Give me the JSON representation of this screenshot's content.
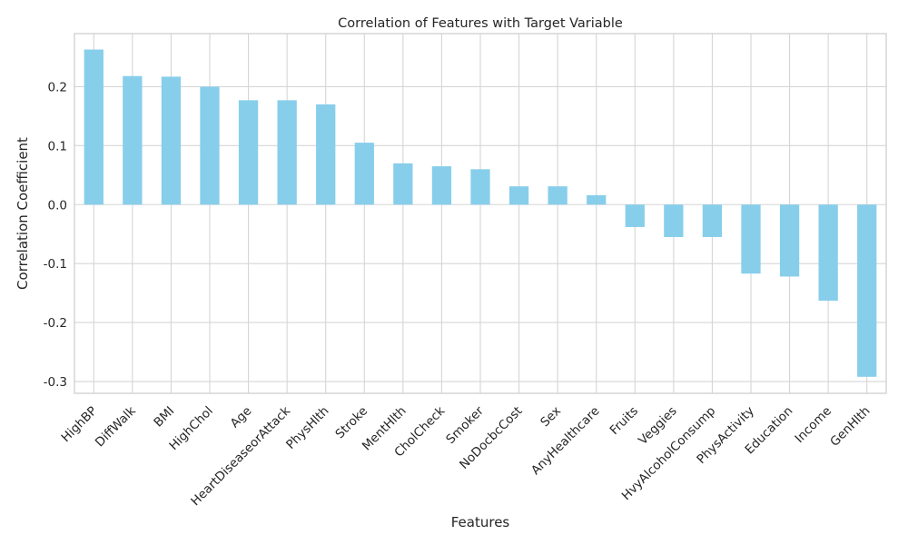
{
  "chart_data": {
    "type": "bar",
    "title": "Correlation of Features with Target Variable",
    "xlabel": "Features",
    "ylabel": "Correlation Coefficient",
    "ylim": [
      -0.32,
      0.29
    ],
    "yticks": [
      -0.3,
      -0.2,
      -0.1,
      0.0,
      0.1,
      0.2
    ],
    "ytick_labels": [
      "-0.3",
      "-0.2",
      "-0.1",
      "0.0",
      "0.1",
      "0.2"
    ],
    "categories": [
      "HighBP",
      "DiffWalk",
      "BMI",
      "HighChol",
      "Age",
      "HeartDiseaseorAttack",
      "PhysHlth",
      "Stroke",
      "MentHlth",
      "CholCheck",
      "Smoker",
      "NoDocbcCost",
      "Sex",
      "AnyHealthcare",
      "Fruits",
      "Veggies",
      "HvyAlcoholConsump",
      "PhysActivity",
      "Education",
      "Income",
      "GenHlth"
    ],
    "values": [
      0.263,
      0.218,
      0.217,
      0.2,
      0.177,
      0.177,
      0.17,
      0.105,
      0.07,
      0.065,
      0.06,
      0.031,
      0.031,
      0.016,
      -0.038,
      -0.055,
      -0.055,
      -0.117,
      -0.122,
      -0.163,
      -0.292
    ],
    "bar_color": "#87ceeb",
    "grid": true,
    "legend": "none"
  }
}
